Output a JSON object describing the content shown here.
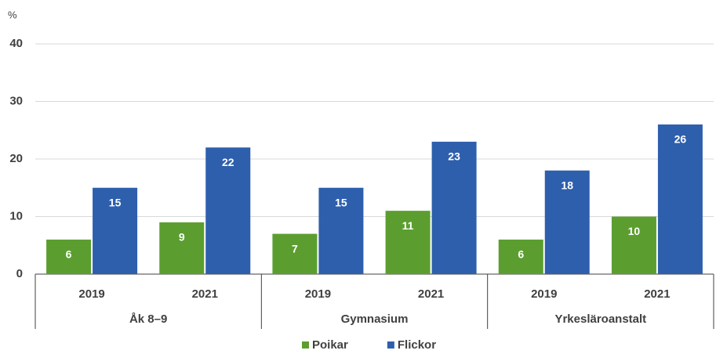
{
  "chart_data": {
    "type": "bar",
    "y_label": "%",
    "categories": [
      "2019",
      "2021",
      "2019",
      "2021",
      "2019",
      "2021"
    ],
    "groups": [
      "Åk 8–9",
      "Gymnasium",
      "Yrkesläroanstalt"
    ],
    "series": [
      {
        "name": "Poikar",
        "color": "#5b9e2f",
        "values": [
          6,
          9,
          7,
          11,
          6,
          10
        ]
      },
      {
        "name": "Flickor",
        "color": "#2e5fad",
        "values": [
          15,
          22,
          15,
          23,
          18,
          26
        ]
      }
    ],
    "ylim": [
      0,
      40
    ],
    "yticks": [
      0,
      10,
      20,
      30,
      40
    ],
    "grid": true,
    "legend": "bottom"
  }
}
